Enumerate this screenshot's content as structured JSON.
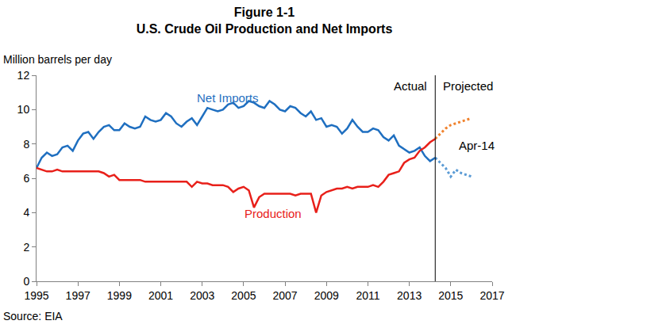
{
  "chart_data": {
    "type": "line",
    "title": "Figure 1-1",
    "subtitle": "U.S. Crude Oil Production and Net Imports",
    "y_label": "Million barrels per day",
    "source": "Source: EIA",
    "annotations": [
      {
        "text": "Actual",
        "x": 2014.25
      },
      {
        "text": "Projected",
        "x": 2014.25
      },
      {
        "text": "Apr-14",
        "x": 2014.25
      }
    ],
    "x": [
      1995,
      1995.25,
      1995.5,
      1995.75,
      1996,
      1996.25,
      1996.5,
      1996.75,
      1997,
      1997.25,
      1997.5,
      1997.75,
      1998,
      1998.25,
      1998.5,
      1998.75,
      1999,
      1999.25,
      1999.5,
      1999.75,
      2000,
      2000.25,
      2000.5,
      2000.75,
      2001,
      2001.25,
      2001.5,
      2001.75,
      2002,
      2002.25,
      2002.5,
      2002.75,
      2003,
      2003.25,
      2003.5,
      2003.75,
      2004,
      2004.25,
      2004.5,
      2004.75,
      2005,
      2005.25,
      2005.5,
      2005.75,
      2006,
      2006.25,
      2006.5,
      2006.75,
      2007,
      2007.25,
      2007.5,
      2007.75,
      2008,
      2008.25,
      2008.5,
      2008.75,
      2009,
      2009.25,
      2009.5,
      2009.75,
      2010,
      2010.25,
      2010.5,
      2010.75,
      2011,
      2011.25,
      2011.5,
      2011.75,
      2012,
      2012.25,
      2012.5,
      2012.75,
      2013,
      2013.25,
      2013.5,
      2013.75,
      2014,
      2014.25
    ],
    "series": [
      {
        "name": "Net Imports",
        "color": "#1f6fc0",
        "line_style": "solid",
        "values": [
          6.6,
          7.2,
          7.5,
          7.3,
          7.4,
          7.8,
          7.9,
          7.6,
          8.2,
          8.6,
          8.7,
          8.3,
          8.7,
          9.0,
          9.1,
          8.8,
          8.8,
          9.2,
          9.0,
          8.9,
          9.0,
          9.6,
          9.4,
          9.3,
          9.4,
          9.8,
          9.6,
          9.2,
          9.0,
          9.3,
          9.5,
          9.1,
          9.6,
          10.1,
          10.0,
          9.9,
          10.0,
          10.3,
          10.4,
          10.1,
          10.2,
          10.5,
          10.4,
          10.2,
          10.1,
          10.5,
          10.3,
          10.0,
          9.9,
          10.2,
          10.1,
          9.8,
          9.6,
          9.9,
          9.4,
          9.5,
          9.0,
          9.1,
          9.0,
          8.6,
          8.9,
          9.4,
          9.0,
          8.7,
          8.7,
          8.9,
          8.8,
          8.4,
          8.2,
          8.5,
          7.9,
          7.7,
          7.5,
          7.6,
          7.8,
          7.3,
          7.0,
          7.2
        ]
      },
      {
        "name": "Production",
        "color": "#e8201a",
        "line_style": "solid",
        "values": [
          6.6,
          6.5,
          6.4,
          6.4,
          6.5,
          6.4,
          6.4,
          6.4,
          6.4,
          6.4,
          6.4,
          6.4,
          6.4,
          6.3,
          6.1,
          6.2,
          5.9,
          5.9,
          5.9,
          5.9,
          5.9,
          5.8,
          5.8,
          5.8,
          5.8,
          5.8,
          5.8,
          5.8,
          5.8,
          5.8,
          5.5,
          5.8,
          5.7,
          5.7,
          5.6,
          5.6,
          5.6,
          5.5,
          5.2,
          5.4,
          5.5,
          5.3,
          4.3,
          4.9,
          5.1,
          5.1,
          5.1,
          5.1,
          5.1,
          5.1,
          5.0,
          5.1,
          5.1,
          5.1,
          4.0,
          5.0,
          5.2,
          5.3,
          5.4,
          5.4,
          5.5,
          5.4,
          5.5,
          5.5,
          5.5,
          5.6,
          5.5,
          5.8,
          6.2,
          6.3,
          6.4,
          6.9,
          7.1,
          7.2,
          7.6,
          7.8,
          8.1,
          8.3
        ]
      },
      {
        "color": "#5b9bd5",
        "line_style": "dotted",
        "x": [
          2014.25,
          2014.5,
          2014.75,
          2015,
          2015.25,
          2015.5,
          2015.75,
          2016
        ],
        "values": [
          7.2,
          6.9,
          6.6,
          6.1,
          6.5,
          6.3,
          6.2,
          6.1
        ]
      },
      {
        "color": "#f0822d",
        "line_style": "dotted",
        "x": [
          2014.25,
          2014.5,
          2014.75,
          2015,
          2015.25,
          2015.5,
          2015.75,
          2016
        ],
        "values": [
          8.3,
          8.6,
          8.9,
          9.1,
          9.2,
          9.3,
          9.4,
          9.5
        ]
      }
    ],
    "xlim": [
      1995,
      2017
    ],
    "xticks": [
      1995,
      1997,
      1999,
      2001,
      2003,
      2005,
      2007,
      2009,
      2011,
      2013,
      2015,
      2017
    ],
    "ylim": [
      0,
      12
    ],
    "yticks": [
      0,
      2,
      4,
      6,
      8,
      10,
      12
    ],
    "grid": false
  }
}
